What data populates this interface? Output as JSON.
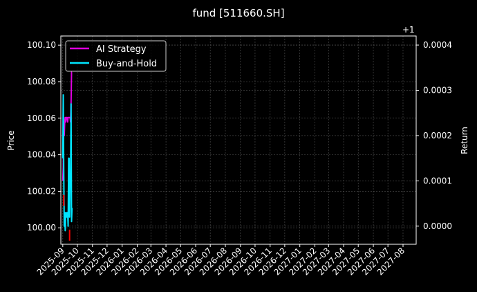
{
  "chart_data": {
    "type": "line",
    "title": "fund [511660.SH]",
    "ylabel_left": "Price",
    "ylabel_right": "Return",
    "right_axis_offset_label": "+1",
    "grid": true,
    "legend_position": "upper-left",
    "x_tick_labels": [
      "2025-09",
      "2025-10",
      "2025-11",
      "2025-12",
      "2026-01",
      "2026-02",
      "2026-03",
      "2026-04",
      "2026-05",
      "2026-06",
      "2026-07",
      "2026-08",
      "2026-09",
      "2026-10",
      "2026-11",
      "2026-12",
      "2027-01",
      "2027-02",
      "2027-03",
      "2027-04",
      "2027-05",
      "2027-06",
      "2027-07",
      "2027-08"
    ],
    "xlim": [
      "2025-08-28",
      "2027-08-28"
    ],
    "ylim_left": [
      99.991,
      100.105
    ],
    "y_ticks_left": [
      100.0,
      100.02,
      100.04,
      100.06,
      100.08,
      100.1
    ],
    "y_tick_labels_left": [
      "100.00",
      "100.02",
      "100.04",
      "100.06",
      "100.08",
      "100.10"
    ],
    "ylim_right_offset": [
      -4e-05,
      0.00042
    ],
    "y_ticks_right": [
      0.0,
      0.0001,
      0.0002,
      0.0003,
      0.0004
    ],
    "y_tick_labels_right": [
      "0.0000",
      "0.0001",
      "0.0002",
      "0.0003",
      "0.0004"
    ],
    "colors": {
      "background": "#000000",
      "grid": "#555555",
      "ai_strategy": "#e000e0",
      "buy_and_hold": "#00e5ff",
      "sell_marker": "#ff0000"
    },
    "series": [
      {
        "name": "AI Strategy",
        "axis": "right",
        "x": [
          "2025-09-01",
          "2025-09-02",
          "2025-09-03",
          "2025-09-04",
          "2025-09-05",
          "2025-09-06",
          "2025-09-07",
          "2025-09-08",
          "2025-09-09",
          "2025-09-10",
          "2025-09-11",
          "2025-09-12",
          "2025-09-13",
          "2025-09-14",
          "2025-09-15",
          "2025-09-16",
          "2025-09-17",
          "2025-09-18",
          "2025-09-19",
          "2025-09-20"
        ],
        "values": [
          0.0001,
          0.00013,
          0.00022,
          0.0002,
          0.00023,
          0.00024,
          0.00023,
          0.00024,
          0.00024,
          0.00024,
          0.00023,
          0.00024,
          0.00024,
          0.00024,
          0.00024,
          0.00024,
          0.00023,
          0.00027,
          0.00034,
          0.00034
        ]
      },
      {
        "name": "Buy-and-Hold",
        "axis": "right",
        "x": [
          "2025-09-01",
          "2025-09-02",
          "2025-09-03",
          "2025-09-04",
          "2025-09-05",
          "2025-09-06",
          "2025-09-07",
          "2025-09-08",
          "2025-09-09",
          "2025-09-10",
          "2025-09-11",
          "2025-09-12",
          "2025-09-13",
          "2025-09-14",
          "2025-09-15",
          "2025-09-16",
          "2025-09-17",
          "2025-09-18",
          "2025-09-19",
          "2025-09-20"
        ],
        "values": [
          0.00015,
          0.00029,
          0.00012,
          0.0,
          3e-05,
          -1e-05,
          3e-05,
          3e-05,
          2e-05,
          3e-05,
          3e-05,
          0.0,
          0.00015,
          0.00015,
          2e-05,
          0.0001,
          0.0001,
          0.00027,
          1e-05,
          4e-05
        ]
      }
    ],
    "markers": [
      {
        "type": "sell",
        "x": "2025-09-03",
        "y": 100.015
      },
      {
        "type": "sell",
        "x": "2025-09-15",
        "y": 99.996
      }
    ]
  }
}
